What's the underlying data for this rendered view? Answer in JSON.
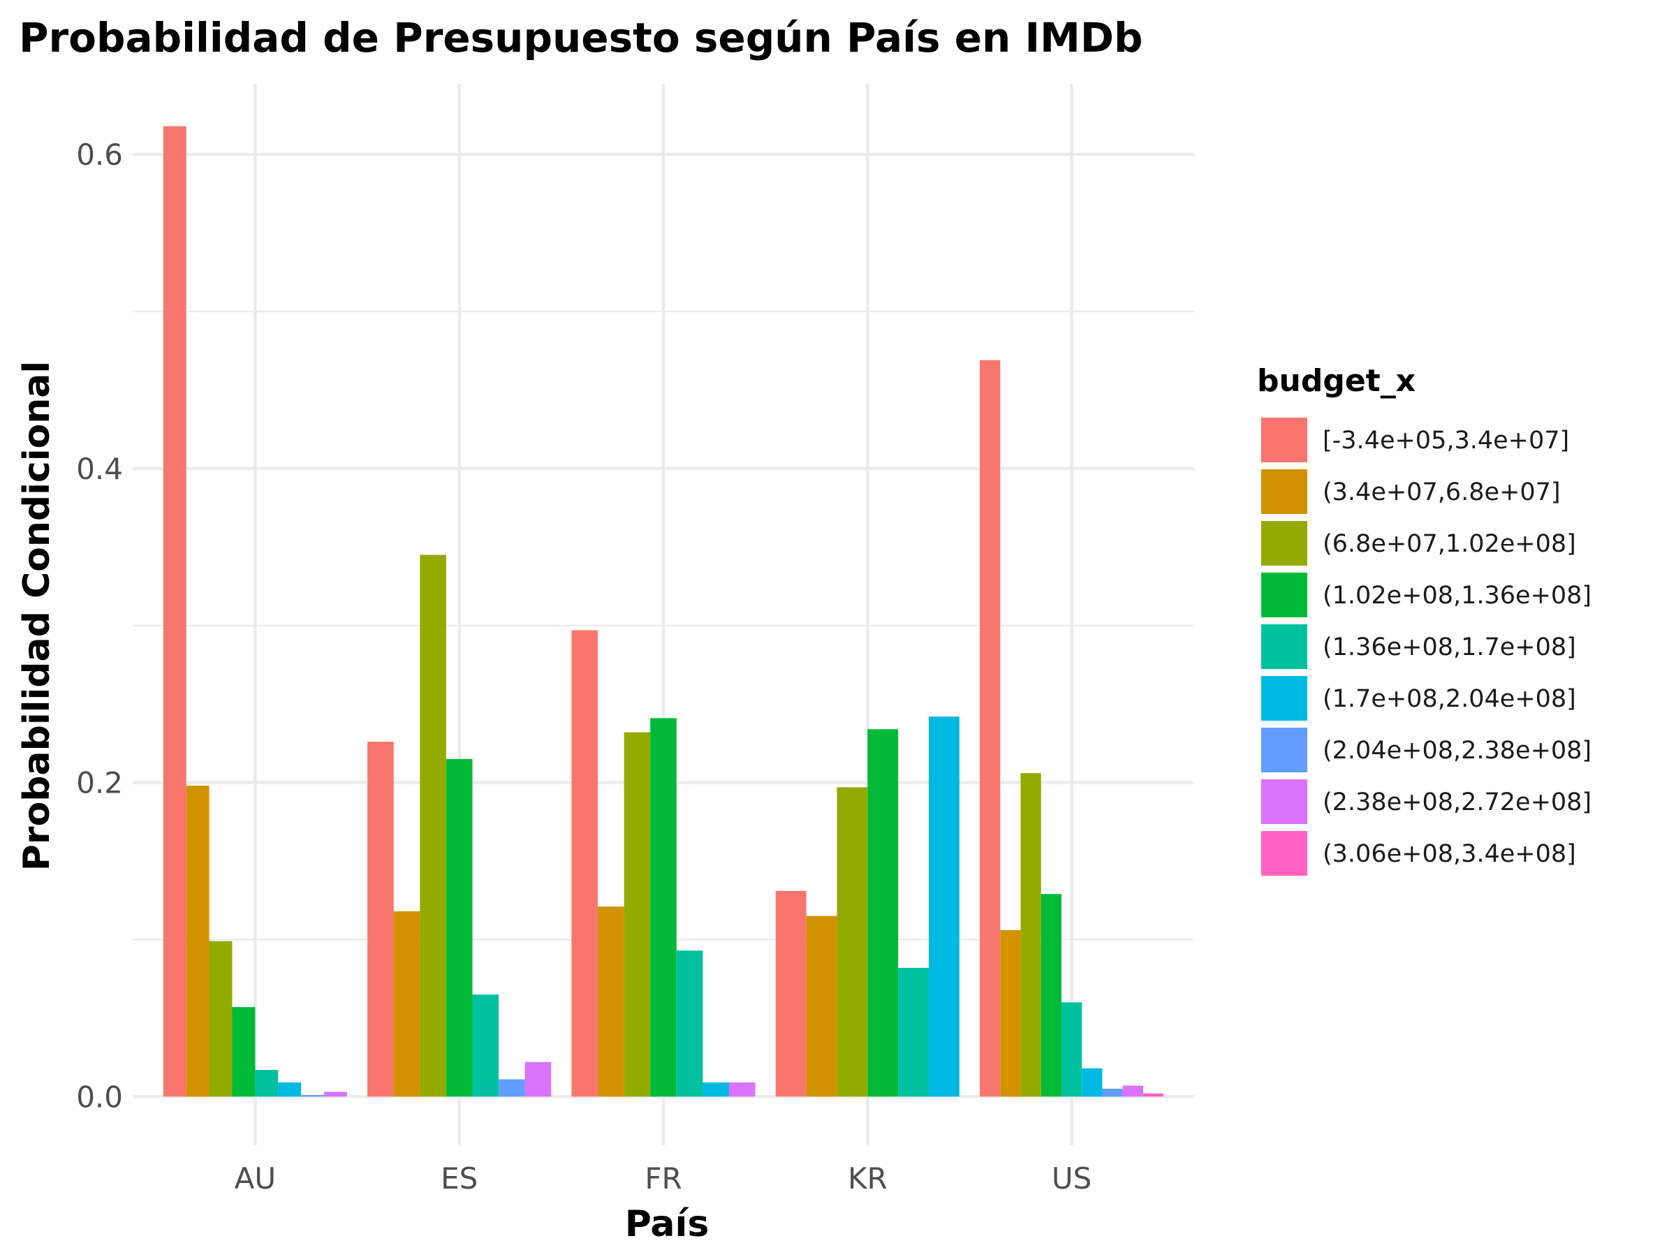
{
  "chart_data": {
    "type": "bar",
    "title": "Probabilidad de Presupuesto según País en IMDb",
    "xlabel": "País",
    "ylabel": "Probabilidad Condicional",
    "ylim": [
      -0.031,
      0.645
    ],
    "yticks": [
      0.0,
      0.2,
      0.4,
      0.6
    ],
    "ytick_labels": [
      "0.0",
      "0.2",
      "0.4",
      "0.6"
    ],
    "grid": true,
    "legend_title": "budget_x",
    "legend_position": "right",
    "categories": [
      "AU",
      "ES",
      "FR",
      "KR",
      "US"
    ],
    "series": [
      {
        "name": "[-3.4e+05,3.4e+07]",
        "color": "#F8766D",
        "values": [
          0.618,
          0.226,
          0.297,
          0.131,
          0.469
        ]
      },
      {
        "name": "(3.4e+07,6.8e+07]",
        "color": "#D39200",
        "values": [
          0.198,
          0.118,
          0.121,
          0.115,
          0.106
        ]
      },
      {
        "name": "(6.8e+07,1.02e+08]",
        "color": "#93AA00",
        "values": [
          0.099,
          0.345,
          0.232,
          0.197,
          0.206
        ]
      },
      {
        "name": "(1.02e+08,1.36e+08]",
        "color": "#00BA38",
        "values": [
          0.057,
          0.215,
          0.241,
          0.234,
          0.129
        ]
      },
      {
        "name": "(1.36e+08,1.7e+08]",
        "color": "#00C19F",
        "values": [
          0.017,
          0.065,
          0.093,
          0.082,
          0.06
        ]
      },
      {
        "name": "(1.7e+08,2.04e+08]",
        "color": "#00B9E3",
        "values": [
          0.009,
          null,
          0.009,
          0.242,
          0.018
        ]
      },
      {
        "name": "(2.04e+08,2.38e+08]",
        "color": "#619CFF",
        "values": [
          0.001,
          0.011,
          null,
          null,
          0.005
        ]
      },
      {
        "name": "(2.38e+08,2.72e+08]",
        "color": "#DB72FB",
        "values": [
          0.003,
          0.022,
          0.009,
          null,
          0.007
        ]
      },
      {
        "name": "(3.06e+08,3.4e+08]",
        "color": "#FF61C3",
        "values": [
          null,
          null,
          null,
          null,
          0.002
        ]
      }
    ]
  }
}
